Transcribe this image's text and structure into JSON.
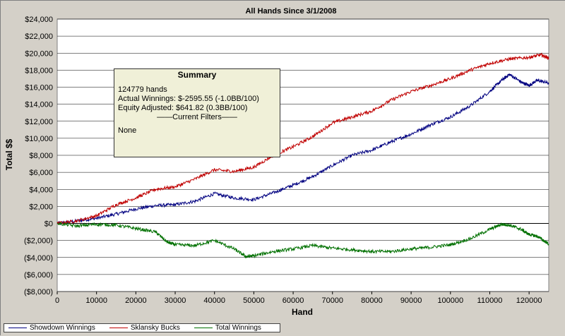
{
  "chart_data": {
    "type": "line",
    "title": "All Hands Since 3/1/2008",
    "xlabel": "Hand",
    "ylabel": "Total $$",
    "xlim": [
      0,
      125000
    ],
    "ylim": [
      -8000,
      24000
    ],
    "x_ticks": [
      0,
      10000,
      20000,
      30000,
      40000,
      50000,
      60000,
      70000,
      80000,
      90000,
      100000,
      110000,
      120000
    ],
    "y_ticks": [
      -8000,
      -6000,
      -4000,
      -2000,
      0,
      2000,
      4000,
      6000,
      8000,
      10000,
      12000,
      14000,
      16000,
      18000,
      20000,
      22000,
      24000
    ],
    "x_tick_labels": [
      "0",
      "10000",
      "20000",
      "30000",
      "40000",
      "50000",
      "60000",
      "70000",
      "80000",
      "90000",
      "100000",
      "110000",
      "120000"
    ],
    "y_tick_labels": [
      "($8,000)",
      "($6,000)",
      "($4,000)",
      "($2,000)",
      "$0",
      "$2,000",
      "$4,000",
      "$6,000",
      "$8,000",
      "$10,000",
      "$12,000",
      "$14,000",
      "$16,000",
      "$18,000",
      "$20,000",
      "$22,000",
      "$24,000"
    ],
    "grid": "horizontal",
    "legend": "bottom",
    "series": [
      {
        "name": "Showdown Winnings",
        "color": "#000080",
        "x": [
          0,
          5000,
          10000,
          15000,
          20000,
          25000,
          30000,
          35000,
          40000,
          45000,
          50000,
          55000,
          60000,
          65000,
          70000,
          75000,
          80000,
          85000,
          90000,
          95000,
          100000,
          105000,
          110000,
          113000,
          115000,
          118000,
          120000,
          122000,
          125000
        ],
        "values": [
          0,
          300,
          600,
          1100,
          1700,
          2100,
          2200,
          2600,
          3500,
          3000,
          2800,
          3600,
          4500,
          5500,
          6800,
          8000,
          8600,
          9600,
          10500,
          11600,
          12500,
          13800,
          15500,
          16800,
          17500,
          16600,
          16200,
          16800,
          16500
        ]
      },
      {
        "name": "Sklansky Bucks",
        "color": "#c00000",
        "x": [
          0,
          5000,
          10000,
          15000,
          20000,
          25000,
          30000,
          35000,
          40000,
          45000,
          50000,
          55000,
          60000,
          65000,
          70000,
          75000,
          80000,
          85000,
          90000,
          95000,
          100000,
          105000,
          110000,
          115000,
          120000,
          123000,
          125000
        ],
        "values": [
          0,
          300,
          900,
          2200,
          3000,
          4000,
          4300,
          5200,
          6300,
          6100,
          6600,
          8000,
          9000,
          10200,
          11800,
          12500,
          13200,
          14500,
          15500,
          16200,
          17000,
          18000,
          18800,
          19300,
          19500,
          19800,
          19400
        ]
      },
      {
        "name": "Total Winnings",
        "color": "#007000",
        "x": [
          0,
          5000,
          10000,
          15000,
          20000,
          25000,
          28000,
          30000,
          35000,
          40000,
          45000,
          48000,
          50000,
          55000,
          60000,
          65000,
          70000,
          75000,
          80000,
          85000,
          90000,
          95000,
          100000,
          105000,
          110000,
          113000,
          115000,
          118000,
          120000,
          122000,
          125000
        ],
        "values": [
          0,
          -300,
          -100,
          -200,
          -600,
          -1000,
          -2200,
          -2500,
          -2600,
          -2000,
          -3000,
          -3900,
          -3800,
          -3300,
          -3000,
          -2600,
          -2900,
          -3100,
          -3300,
          -3300,
          -3000,
          -2800,
          -2500,
          -1800,
          -700,
          -100,
          -200,
          -700,
          -1300,
          -1500,
          -2400
        ]
      }
    ],
    "summary_box": {
      "title": "Summary",
      "hands": "124779 hands",
      "actual": "Actual Winnings: $-2595.55 (-1.0BB/100)",
      "equity": "Equity Adjusted: $641.82 (0.3BB/100)",
      "filters_header": "——Current Filters——",
      "filters": "None"
    }
  }
}
